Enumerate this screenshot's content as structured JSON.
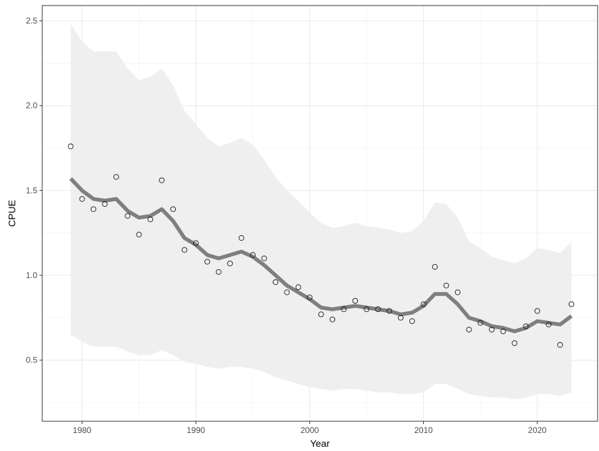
{
  "chart_data": {
    "type": "line",
    "title": "",
    "xlabel": "Year",
    "ylabel": "CPUE",
    "xlim": [
      1976.5,
      2025.3
    ],
    "ylim": [
      0.14,
      2.59
    ],
    "x_ticks": [
      1980,
      1990,
      2000,
      2010,
      2020
    ],
    "y_ticks": [
      0.5,
      1.0,
      1.5,
      2.0,
      2.5
    ],
    "x_tick_labels": [
      "1980",
      "1990",
      "2000",
      "2010",
      "2020"
    ],
    "y_tick_labels": [
      "0.5",
      "1.0",
      "1.5",
      "2.0",
      "2.5"
    ],
    "grid": true,
    "colors": {
      "ribbon": "#efefef",
      "line": "#7f7f7f",
      "points_stroke": "#1a1a1a",
      "grid": "#e8e8e8",
      "panel_border": "#333333"
    },
    "x": [
      1979,
      1980,
      1981,
      1982,
      1983,
      1984,
      1985,
      1986,
      1987,
      1988,
      1989,
      1990,
      1991,
      1992,
      1993,
      1994,
      1995,
      1996,
      1997,
      1998,
      1999,
      2000,
      2001,
      2002,
      2003,
      2004,
      2005,
      2006,
      2007,
      2008,
      2009,
      2010,
      2011,
      2012,
      2013,
      2014,
      2015,
      2016,
      2017,
      2018,
      2019,
      2020,
      2021,
      2022,
      2023
    ],
    "series": [
      {
        "kind": "points",
        "values": [
          1.76,
          1.45,
          1.39,
          1.42,
          1.58,
          1.35,
          1.24,
          1.33,
          1.56,
          1.39,
          1.15,
          1.19,
          1.08,
          1.02,
          1.07,
          1.22,
          1.12,
          1.1,
          0.96,
          0.9,
          0.93,
          0.87,
          0.77,
          0.74,
          0.8,
          0.85,
          0.8,
          0.8,
          0.79,
          0.75,
          0.73,
          0.83,
          1.05,
          0.94,
          0.9,
          0.68,
          0.72,
          0.68,
          0.67,
          0.6,
          0.7,
          0.79,
          0.71,
          0.59,
          0.83
        ]
      },
      {
        "kind": "line",
        "values": [
          1.57,
          1.5,
          1.45,
          1.44,
          1.45,
          1.38,
          1.34,
          1.35,
          1.39,
          1.32,
          1.22,
          1.18,
          1.12,
          1.1,
          1.12,
          1.14,
          1.11,
          1.06,
          1.0,
          0.94,
          0.9,
          0.86,
          0.81,
          0.8,
          0.81,
          0.82,
          0.81,
          0.8,
          0.79,
          0.77,
          0.78,
          0.82,
          0.89,
          0.89,
          0.83,
          0.75,
          0.73,
          0.7,
          0.69,
          0.67,
          0.69,
          0.73,
          0.72,
          0.71,
          0.76
        ]
      },
      {
        "kind": "ribbon",
        "lower": [
          0.65,
          0.61,
          0.58,
          0.58,
          0.58,
          0.55,
          0.53,
          0.53,
          0.56,
          0.53,
          0.49,
          0.48,
          0.46,
          0.45,
          0.46,
          0.46,
          0.45,
          0.43,
          0.4,
          0.38,
          0.36,
          0.34,
          0.33,
          0.32,
          0.33,
          0.33,
          0.32,
          0.31,
          0.31,
          0.3,
          0.3,
          0.31,
          0.36,
          0.36,
          0.33,
          0.3,
          0.29,
          0.28,
          0.28,
          0.27,
          0.28,
          0.3,
          0.3,
          0.29,
          0.31
        ],
        "upper": [
          2.48,
          2.38,
          2.32,
          2.32,
          2.32,
          2.22,
          2.15,
          2.17,
          2.22,
          2.12,
          1.97,
          1.89,
          1.81,
          1.76,
          1.78,
          1.81,
          1.77,
          1.68,
          1.58,
          1.5,
          1.44,
          1.37,
          1.31,
          1.28,
          1.29,
          1.31,
          1.29,
          1.28,
          1.27,
          1.25,
          1.26,
          1.32,
          1.43,
          1.42,
          1.34,
          1.2,
          1.16,
          1.11,
          1.09,
          1.07,
          1.1,
          1.16,
          1.15,
          1.13,
          1.2
        ]
      }
    ]
  }
}
